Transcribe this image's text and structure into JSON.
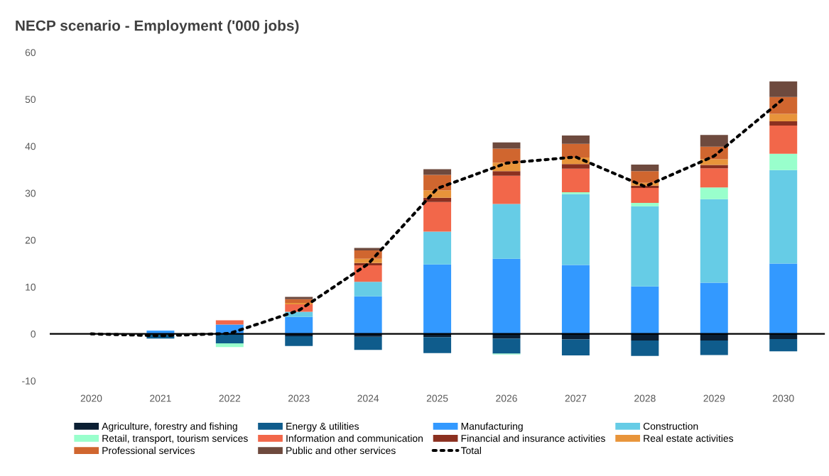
{
  "chart_data": {
    "type": "bar",
    "stacked": true,
    "title": "NECP scenario - Employment ('000 jobs)",
    "categories": [
      "2020",
      "2021",
      "2022",
      "2023",
      "2024",
      "2025",
      "2026",
      "2027",
      "2028",
      "2029",
      "2030"
    ],
    "series": [
      {
        "name": "Agriculture, forestry and fishing",
        "color": "#0b1f33",
        "values": [
          0,
          null,
          0,
          -0.5,
          -0.6,
          -0.7,
          -1.0,
          -1.2,
          -1.4,
          -1.4,
          -1.1
        ]
      },
      {
        "name": "Energy & utilities",
        "color": "#0f5c8c",
        "values": [
          0,
          -1.0,
          -2.0,
          -2.1,
          -2.8,
          -3.4,
          -3.2,
          -3.4,
          -3.3,
          -3.1,
          -2.6
        ]
      },
      {
        "name": "Manufacturing",
        "color": "#3399ff",
        "values": [
          0,
          0.7,
          2.0,
          3.6,
          8.0,
          14.8,
          16.0,
          14.7,
          10.1,
          10.9,
          15.0
        ]
      },
      {
        "name": "Construction",
        "color": "#66cce6",
        "values": [
          0,
          0,
          0,
          1.1,
          3.1,
          7.0,
          11.7,
          15.1,
          17.1,
          17.8,
          19.9
        ]
      },
      {
        "name": "Retail, transport, tourism services",
        "color": "#99ffcc",
        "values": [
          0,
          0,
          -0.8,
          0,
          0,
          null,
          -0.2,
          0.4,
          0.7,
          2.5,
          3.5
        ]
      },
      {
        "name": "Information and communication",
        "color": "#f2674a",
        "values": [
          0,
          0,
          0.9,
          1.6,
          3.5,
          6.3,
          6.0,
          5.0,
          3.2,
          4.1,
          6.0
        ]
      },
      {
        "name": "Financial and insurance activities",
        "color": "#8b3020",
        "values": [
          0,
          0,
          0,
          null,
          0.5,
          0.9,
          1.0,
          1.0,
          0.5,
          0.7,
          0.9
        ]
      },
      {
        "name": "Real estate activities",
        "color": "#e8943a",
        "values": [
          0,
          0,
          0,
          0.3,
          0.9,
          1.6,
          1.8,
          1.4,
          0.6,
          1.2,
          1.6
        ]
      },
      {
        "name": "Professional services",
        "color": "#d0662f",
        "values": [
          0,
          0,
          0,
          0.8,
          1.8,
          3.3,
          3.0,
          2.9,
          2.5,
          2.7,
          3.6
        ]
      },
      {
        "name": "Public and other services",
        "color": "#6e4a3e",
        "values": [
          0,
          0,
          0,
          0.5,
          0.5,
          1.2,
          1.3,
          1.8,
          1.4,
          2.5,
          3.3
        ]
      },
      {
        "name": "Total",
        "type": "line",
        "color": "#000000",
        "line_style": "dotted",
        "values": [
          0,
          -0.4,
          0.1,
          5.0,
          14.9,
          31.0,
          36.4,
          37.7,
          31.4,
          37.9,
          50.1
        ]
      }
    ],
    "ylim": [
      -10,
      60
    ],
    "yticks": [
      -10,
      0,
      10,
      20,
      30,
      40,
      50,
      60
    ],
    "ref_lines": [
      {
        "axis": "y",
        "value": 0,
        "color": "#000000",
        "line_style": "solid"
      }
    ],
    "grid": false,
    "legend": "bottom"
  }
}
